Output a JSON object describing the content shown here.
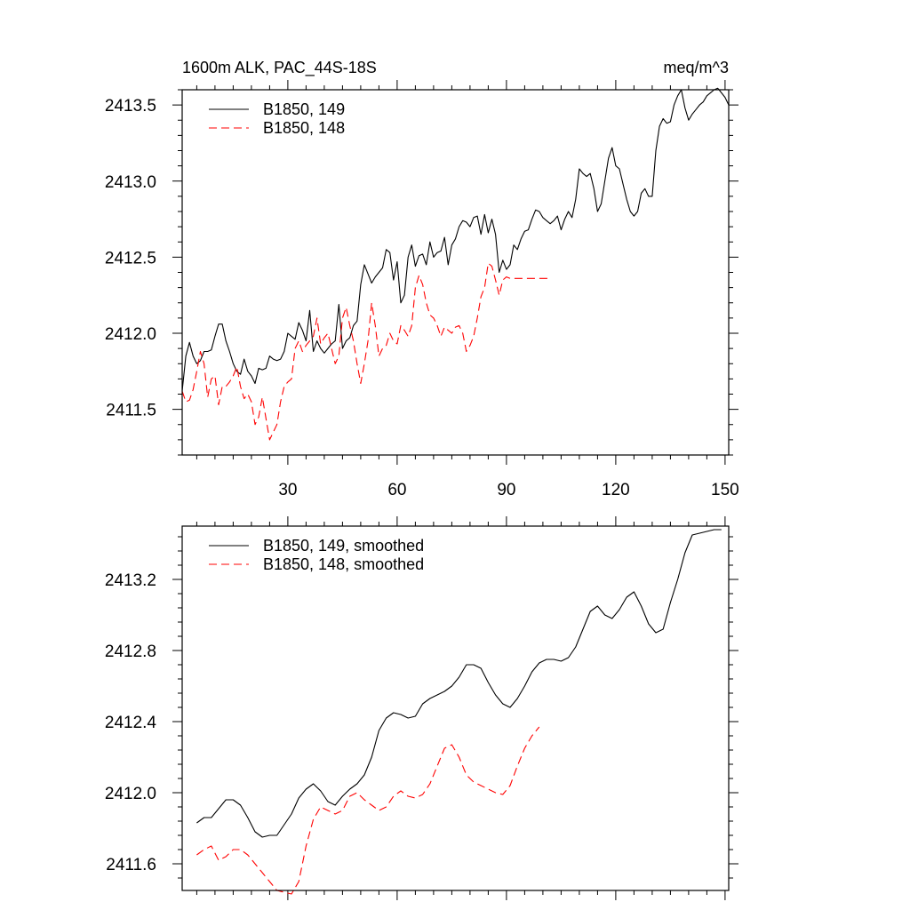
{
  "chart_data": [
    {
      "type": "line",
      "title_left": "1600m ALK, PAC_44S-18S",
      "title_right": "meq/m^3",
      "xlim": [
        1,
        151
      ],
      "ylim": [
        2411.2,
        2413.6
      ],
      "x_ticks": [
        30,
        60,
        90,
        120,
        150
      ],
      "x_tick_labels": [
        "30",
        "60",
        "90",
        "120",
        "150"
      ],
      "y_ticks": [
        2411.5,
        2412.0,
        2412.5,
        2413.0,
        2413.5
      ],
      "y_tick_labels": [
        "2411.5",
        "2412.0",
        "2412.5",
        "2413.0",
        "2413.5"
      ],
      "legend_position": "top-left",
      "series": [
        {
          "name": "B1850, 149",
          "color": "#000000",
          "dash": "solid",
          "x": [
            1,
            2,
            3,
            4,
            5,
            6,
            7,
            8,
            9,
            10,
            11,
            12,
            13,
            14,
            15,
            16,
            17,
            18,
            19,
            20,
            21,
            22,
            23,
            24,
            25,
            26,
            27,
            28,
            29,
            30,
            31,
            32,
            33,
            34,
            35,
            36,
            37,
            38,
            39,
            40,
            41,
            42,
            43,
            44,
            45,
            46,
            47,
            48,
            49,
            50,
            51,
            52,
            53,
            54,
            55,
            56,
            57,
            58,
            59,
            60,
            61,
            62,
            63,
            64,
            65,
            66,
            67,
            68,
            69,
            70,
            71,
            72,
            73,
            74,
            75,
            76,
            77,
            78,
            79,
            80,
            81,
            82,
            83,
            84,
            85,
            86,
            87,
            88,
            89,
            90,
            91,
            92,
            93,
            94,
            95,
            96,
            97,
            98,
            99,
            100,
            101,
            102,
            103,
            104,
            105,
            106,
            107,
            108,
            109,
            110,
            111,
            112,
            113,
            114,
            115,
            116,
            117,
            118,
            119,
            120,
            121,
            122,
            123,
            124,
            125,
            126,
            127,
            128,
            129,
            130,
            131,
            132,
            133,
            134,
            135,
            136,
            137,
            138,
            139,
            140,
            141,
            142,
            143,
            144,
            145,
            146,
            147,
            148,
            149,
            150,
            151
          ],
          "y": [
            2411.62,
            2411.85,
            2411.94,
            2411.85,
            2411.8,
            2411.82,
            2411.88,
            2411.88,
            2411.89,
            2411.98,
            2412.06,
            2412.06,
            2411.95,
            2411.88,
            2411.8,
            2411.75,
            2411.73,
            2411.83,
            2411.75,
            2411.72,
            2411.67,
            2411.77,
            2411.76,
            2411.77,
            2411.85,
            2411.83,
            2411.82,
            2411.83,
            2411.88,
            2412.0,
            2411.98,
            2411.96,
            2412.07,
            2412.02,
            2411.95,
            2412.15,
            2411.88,
            2411.95,
            2411.9,
            2411.87,
            2411.9,
            2411.93,
            2411.95,
            2412.19,
            2411.9,
            2411.95,
            2411.97,
            2412.05,
            2412.08,
            2412.32,
            2412.45,
            2412.39,
            2412.33,
            2412.37,
            2412.4,
            2412.43,
            2412.55,
            2412.53,
            2412.35,
            2412.47,
            2412.2,
            2412.25,
            2412.5,
            2412.58,
            2412.44,
            2412.51,
            2412.52,
            2412.45,
            2412.6,
            2412.5,
            2412.53,
            2412.54,
            2412.63,
            2412.45,
            2412.58,
            2412.62,
            2412.7,
            2412.74,
            2412.73,
            2412.7,
            2412.76,
            2412.77,
            2412.65,
            2412.78,
            2412.66,
            2412.75,
            2412.65,
            2412.4,
            2412.48,
            2412.42,
            2412.45,
            2412.58,
            2412.55,
            2412.62,
            2412.67,
            2412.68,
            2412.75,
            2412.81,
            2412.8,
            2412.76,
            2412.74,
            2412.72,
            2412.74,
            2412.77,
            2412.68,
            2412.75,
            2412.8,
            2412.76,
            2412.88,
            2413.08,
            2413.05,
            2413.03,
            2413.05,
            2412.95,
            2412.8,
            2412.85,
            2413.0,
            2413.15,
            2413.22,
            2413.1,
            2413.08,
            2412.98,
            2412.88,
            2412.8,
            2412.77,
            2412.8,
            2412.92,
            2412.95,
            2412.9,
            2412.9,
            2413.2,
            2413.36,
            2413.41,
            2413.38,
            2413.39,
            2413.5,
            2413.56,
            2413.6,
            2413.48,
            2413.4,
            2413.44,
            2413.47,
            2413.5,
            2413.52,
            2413.56,
            2413.58,
            2413.6,
            2413.61,
            2413.58,
            2413.55,
            2413.5
          ]
        },
        {
          "name": "B1850, 148",
          "color": "#ff0000",
          "dash": "dashed",
          "x": [
            1,
            2,
            3,
            4,
            5,
            6,
            7,
            8,
            9,
            10,
            11,
            12,
            13,
            14,
            15,
            16,
            17,
            18,
            19,
            20,
            21,
            22,
            23,
            24,
            25,
            26,
            27,
            28,
            29,
            30,
            31,
            32,
            33,
            34,
            35,
            36,
            37,
            38,
            39,
            40,
            41,
            42,
            43,
            44,
            45,
            46,
            47,
            48,
            49,
            50,
            51,
            52,
            53,
            54,
            55,
            56,
            57,
            58,
            59,
            60,
            61,
            62,
            63,
            64,
            65,
            66,
            67,
            68,
            69,
            70,
            71,
            72,
            73,
            74,
            75,
            76,
            77,
            78,
            79,
            80,
            81,
            82,
            83,
            84,
            85,
            86,
            87,
            88,
            89,
            90,
            91,
            92,
            93,
            94,
            95,
            96,
            97,
            98,
            99,
            100,
            101,
            102
          ],
          "y": [
            2411.62,
            2411.55,
            2411.56,
            2411.63,
            2411.75,
            2411.88,
            2411.8,
            2411.58,
            2411.7,
            2411.72,
            2411.53,
            2411.65,
            2411.65,
            2411.68,
            2411.72,
            2411.78,
            2411.65,
            2411.57,
            2411.6,
            2411.55,
            2411.4,
            2411.45,
            2411.58,
            2411.44,
            2411.3,
            2411.35,
            2411.4,
            2411.55,
            2411.65,
            2411.68,
            2411.7,
            2411.9,
            2411.95,
            2411.88,
            2411.92,
            2411.95,
            2411.98,
            2412.1,
            2411.93,
            2411.97,
            2412.0,
            2411.9,
            2411.8,
            2411.85,
            2412.1,
            2412.17,
            2412.05,
            2411.95,
            2411.8,
            2411.67,
            2411.8,
            2411.95,
            2412.2,
            2412.05,
            2411.85,
            2411.9,
            2411.92,
            2412.0,
            2411.95,
            2411.93,
            2412.05,
            2412.02,
            2411.98,
            2412.05,
            2412.3,
            2412.38,
            2412.32,
            2412.2,
            2412.12,
            2412.1,
            2412.05,
            2411.98,
            2412.04,
            2412.02,
            2412.0,
            2412.04,
            2412.05,
            2412.0,
            2411.88,
            2411.92,
            2411.98,
            2412.1,
            2412.24,
            2412.3,
            2412.46,
            2412.44,
            2412.35,
            2412.25,
            2412.35,
            2412.37,
            2412.36,
            2412.36,
            2412.36,
            2412.36,
            2412.36,
            2412.36,
            2412.36,
            2412.36,
            2412.36,
            2412.36,
            2412.36,
            2412.36
          ]
        }
      ]
    },
    {
      "type": "line",
      "xlim": [
        1,
        151
      ],
      "ylim": [
        2411.45,
        2413.5
      ],
      "x_ticks": [
        30,
        60,
        90,
        120,
        150
      ],
      "y_ticks": [
        2411.6,
        2412.0,
        2412.4,
        2412.8,
        2413.2
      ],
      "y_tick_labels": [
        "2411.6",
        "2412.0",
        "2412.4",
        "2412.8",
        "2413.2"
      ],
      "legend_position": "top-left",
      "series": [
        {
          "name": "B1850, 149, smoothed",
          "color": "#000000",
          "dash": "solid",
          "x": [
            5,
            7,
            9,
            11,
            13,
            15,
            17,
            19,
            21,
            23,
            25,
            27,
            29,
            31,
            33,
            35,
            37,
            39,
            41,
            43,
            45,
            47,
            49,
            51,
            53,
            55,
            57,
            59,
            61,
            63,
            65,
            67,
            69,
            71,
            73,
            75,
            77,
            79,
            81,
            83,
            85,
            87,
            89,
            91,
            93,
            95,
            97,
            99,
            101,
            103,
            105,
            107,
            109,
            111,
            113,
            115,
            117,
            119,
            121,
            123,
            125,
            127,
            129,
            131,
            133,
            135,
            137,
            139,
            141,
            143,
            145,
            147,
            149
          ],
          "y": [
            2411.83,
            2411.86,
            2411.86,
            2411.91,
            2411.96,
            2411.96,
            2411.93,
            2411.86,
            2411.78,
            2411.75,
            2411.76,
            2411.76,
            2411.82,
            2411.88,
            2411.97,
            2412.02,
            2412.05,
            2412.01,
            2411.95,
            2411.93,
            2411.98,
            2412.02,
            2412.05,
            2412.1,
            2412.2,
            2412.35,
            2412.42,
            2412.45,
            2412.44,
            2412.42,
            2412.43,
            2412.5,
            2412.53,
            2412.55,
            2412.57,
            2412.6,
            2412.65,
            2412.72,
            2412.72,
            2412.7,
            2412.62,
            2412.55,
            2412.5,
            2412.48,
            2412.53,
            2412.6,
            2412.68,
            2412.73,
            2412.75,
            2412.75,
            2412.74,
            2412.76,
            2412.82,
            2412.92,
            2413.02,
            2413.05,
            2413.0,
            2412.98,
            2413.03,
            2413.1,
            2413.13,
            2413.05,
            2412.95,
            2412.9,
            2412.92,
            2413.07,
            2413.2,
            2413.35,
            2413.45,
            2413.46,
            2413.47,
            2413.48,
            2413.48
          ]
        },
        {
          "name": "B1850, 148, smoothed",
          "color": "#ff0000",
          "dash": "dashed",
          "x": [
            5,
            7,
            9,
            11,
            13,
            15,
            17,
            19,
            21,
            23,
            25,
            27,
            29,
            31,
            33,
            35,
            37,
            39,
            41,
            43,
            45,
            47,
            49,
            51,
            53,
            55,
            57,
            59,
            61,
            63,
            65,
            67,
            69,
            71,
            73,
            75,
            77,
            79,
            81,
            83,
            85,
            87,
            89,
            91,
            93,
            95,
            97,
            99
          ],
          "y": [
            2411.65,
            2411.68,
            2411.7,
            2411.62,
            2411.64,
            2411.68,
            2411.68,
            2411.65,
            2411.6,
            2411.55,
            2411.5,
            2411.45,
            2411.44,
            2411.43,
            2411.5,
            2411.7,
            2411.85,
            2411.92,
            2411.9,
            2411.88,
            2411.9,
            2411.98,
            2412.0,
            2411.96,
            2411.93,
            2411.9,
            2411.92,
            2411.98,
            2412.01,
            2411.98,
            2411.97,
            2411.99,
            2412.05,
            2412.15,
            2412.25,
            2412.27,
            2412.2,
            2412.1,
            2412.06,
            2412.04,
            2412.02,
            2412.0,
            2411.99,
            2412.04,
            2412.15,
            2412.25,
            2412.32,
            2412.37
          ]
        }
      ]
    }
  ]
}
